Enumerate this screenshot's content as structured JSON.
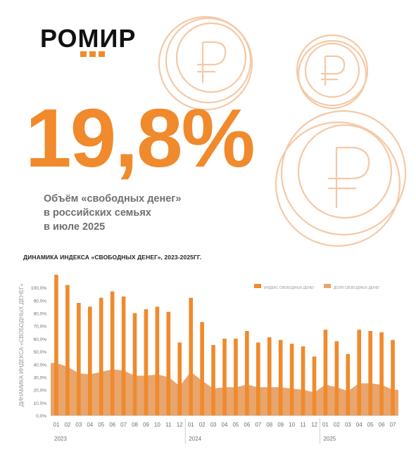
{
  "brand": {
    "logo_text": "РОМИР"
  },
  "headline": {
    "value": "19,8%",
    "description_lines": [
      "Объём «свободных денег»",
      "в российских семьях",
      "в июле 2025"
    ]
  },
  "colors": {
    "accent": "#f08a2c",
    "area": "#e8a56d",
    "coin": "#f4c9a6",
    "text_gray": "#707070"
  },
  "icons": [
    "ruble-coin-icon"
  ],
  "chart_data": {
    "type": "bar",
    "title": "ДИНАМИКА ИНДЕКСА «СВОБОДНЫХ ДЕНЕГ», 2023-2025ГГ.",
    "ylabel": "ДИНАМИКА ИНДЕКСА «СВОБОДНЫХ ДЕНЕГ»",
    "xlabel": "",
    "ylim": [
      0,
      110
    ],
    "y_ticks": [
      "0,0%",
      "10,0%",
      "20,0%",
      "30,0%",
      "40,0%",
      "50,0%",
      "60,0%",
      "70,0%",
      "80,0%",
      "90,0%",
      "100,0%"
    ],
    "y_tick_values": [
      0,
      10,
      20,
      30,
      40,
      50,
      60,
      70,
      80,
      90,
      100
    ],
    "categories": [
      "01",
      "02",
      "03",
      "04",
      "05",
      "06",
      "07",
      "08",
      "09",
      "10",
      "11",
      "12",
      "01",
      "02",
      "03",
      "04",
      "05",
      "06",
      "07",
      "08",
      "09",
      "10",
      "11",
      "12",
      "01",
      "02",
      "03",
      "04",
      "05",
      "06",
      "07"
    ],
    "year_groups": [
      {
        "label": "2023",
        "count": 12
      },
      {
        "label": "2024",
        "count": 12
      },
      {
        "label": "2025",
        "count": 7
      }
    ],
    "legend_position": "top-right",
    "series": [
      {
        "name": "ИНДЕКС СВОБОДНЫХ ДЕНЕГ",
        "type": "bar",
        "values": [
          110,
          102,
          88,
          85,
          92,
          97,
          93,
          80,
          83,
          85,
          81,
          57,
          92,
          73,
          55,
          60,
          60,
          66,
          57,
          61,
          59,
          56,
          54,
          46,
          67,
          58,
          48,
          67,
          66,
          65,
          59
        ]
      },
      {
        "name": "ДОЛЯ СВОБОДНЫХ ДЕНЕГ",
        "type": "area",
        "values": [
          41,
          38,
          33,
          32,
          34,
          36,
          35,
          31,
          31,
          32,
          30,
          23,
          34,
          27,
          21,
          22,
          22,
          24,
          22,
          22,
          22,
          21,
          20,
          18,
          24,
          22,
          19,
          25,
          25,
          24,
          20
        ]
      }
    ]
  }
}
